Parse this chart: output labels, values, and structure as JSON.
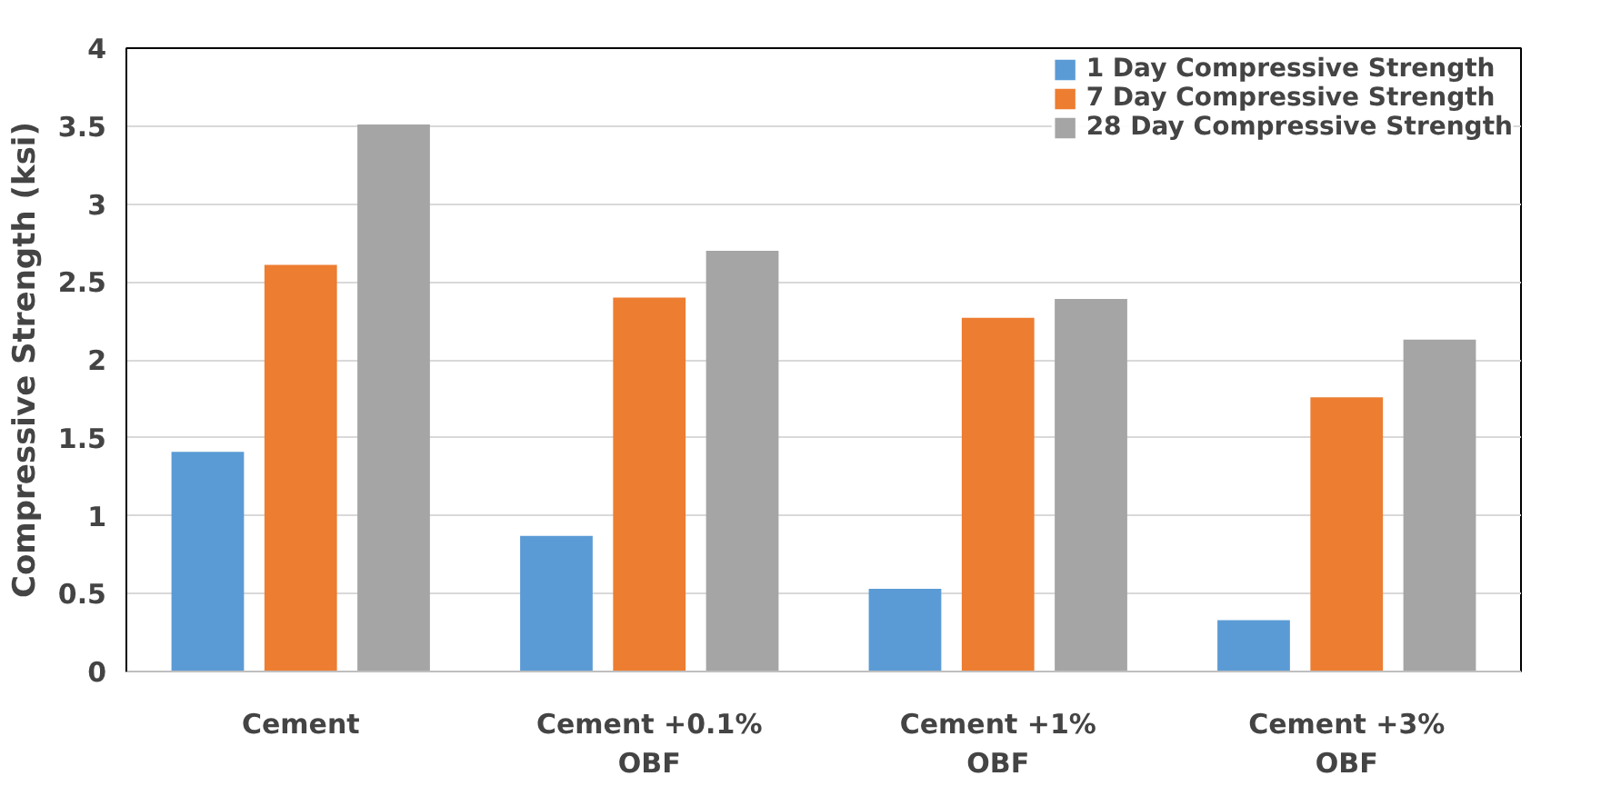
{
  "chart_data": {
    "type": "bar",
    "ylabel": "Compressive Strength (ksi)",
    "categories": [
      "Cement",
      "Cement +0.1%\nOBF",
      "Cement +1%\nOBF",
      "Cement +3%\nOBF"
    ],
    "series": [
      {
        "name": "1 Day Compressive Strength",
        "color": "#5b9bd5",
        "values": [
          1.41,
          0.87,
          0.53,
          0.33
        ]
      },
      {
        "name": "7 Day Compressive Strength",
        "color": "#ed7d31",
        "values": [
          2.61,
          2.4,
          2.27,
          1.76
        ]
      },
      {
        "name": "28 Day Compressive Strength",
        "color": "#a5a5a5",
        "values": [
          3.51,
          2.7,
          2.39,
          2.13
        ]
      }
    ],
    "ylim": [
      0,
      4
    ],
    "yticks": [
      0,
      0.5,
      1,
      1.5,
      2,
      2.5,
      3,
      3.5,
      4
    ],
    "grid": "y",
    "legend": "top right"
  }
}
